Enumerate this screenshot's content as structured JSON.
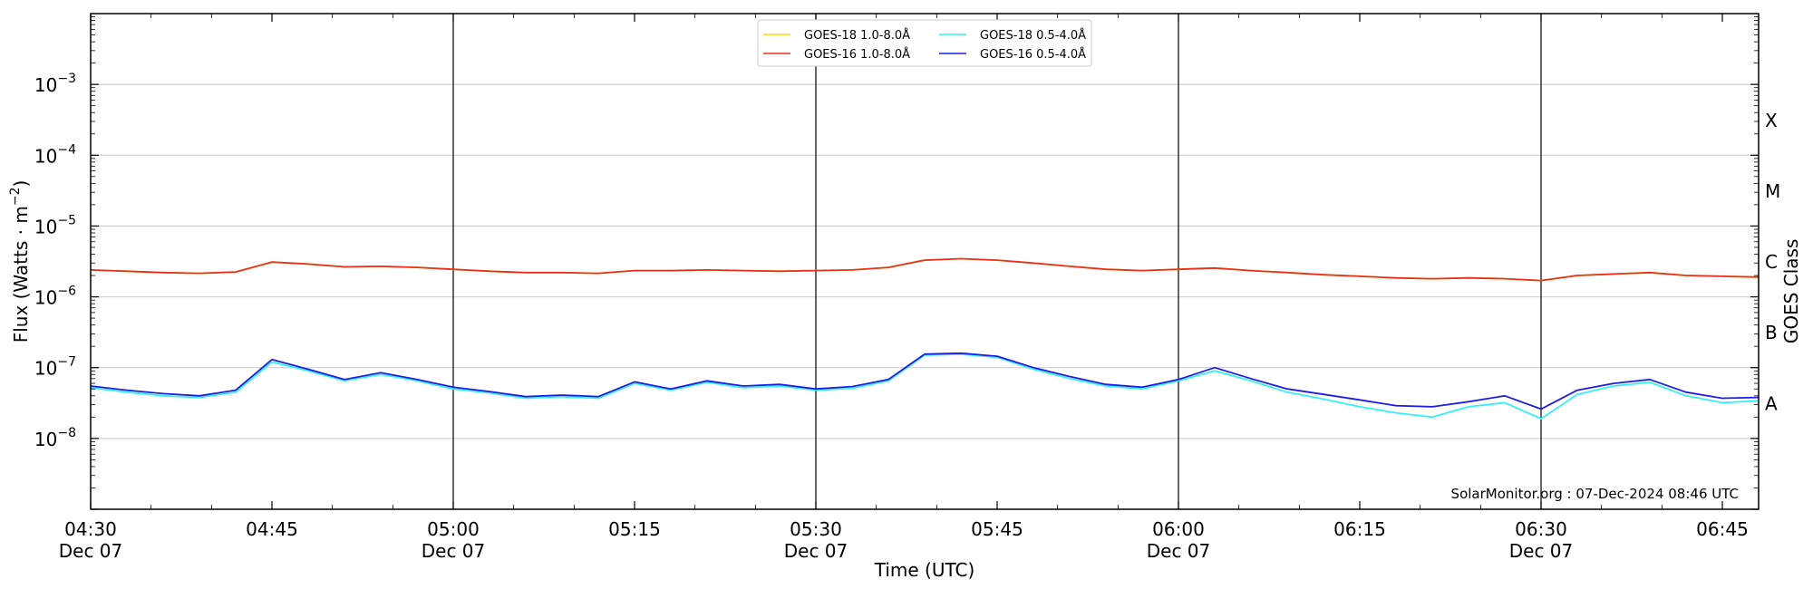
{
  "chart_data": {
    "type": "line",
    "xlabel": "Time (UTC)",
    "ylabel": "Flux (Watts · m",
    "ylabel_sup": "−2",
    "ylabel_close": ")",
    "right_axis_label": "GOES Class",
    "y_scale": "log",
    "ylim": [
      1e-09,
      0.01
    ],
    "xlim": [
      "2024-12-07 04:30",
      "2024-12-07 06:48"
    ],
    "grid": "horizontal",
    "legend_position": "top-center",
    "y_ticks": [
      {
        "value": 1e-08,
        "exp": "−8"
      },
      {
        "value": 1e-07,
        "exp": "−7"
      },
      {
        "value": 1e-06,
        "exp": "−6"
      },
      {
        "value": 1e-05,
        "exp": "−5"
      },
      {
        "value": 0.0001,
        "exp": "−4"
      },
      {
        "value": 0.001,
        "exp": "−3"
      }
    ],
    "y_tick_base": "10",
    "x_ticks": [
      {
        "minute": 0,
        "label": "04:30",
        "sub": "Dec 07"
      },
      {
        "minute": 15,
        "label": "04:45",
        "sub": ""
      },
      {
        "minute": 30,
        "label": "05:00",
        "sub": "Dec 07"
      },
      {
        "minute": 45,
        "label": "05:15",
        "sub": ""
      },
      {
        "minute": 60,
        "label": "05:30",
        "sub": "Dec 07"
      },
      {
        "minute": 75,
        "label": "05:45",
        "sub": ""
      },
      {
        "minute": 90,
        "label": "06:00",
        "sub": "Dec 07"
      },
      {
        "minute": 105,
        "label": "06:15",
        "sub": ""
      },
      {
        "minute": 120,
        "label": "06:30",
        "sub": "Dec 07"
      },
      {
        "minute": 135,
        "label": "06:45",
        "sub": ""
      }
    ],
    "vertical_lines_minutes": [
      30,
      60,
      90,
      120
    ],
    "goes_classes": [
      {
        "label": "A",
        "value": 3.2e-08
      },
      {
        "label": "B",
        "value": 3.2e-07
      },
      {
        "label": "C",
        "value": 3.2e-06
      },
      {
        "label": "M",
        "value": 3.2e-05
      },
      {
        "label": "X",
        "value": 0.00032
      }
    ],
    "credit": "SolarMonitor.org : 07-Dec-2024 08:46 UTC",
    "x_minutes": [
      0,
      3,
      6,
      9,
      12,
      15,
      18,
      21,
      24,
      27,
      30,
      33,
      36,
      39,
      42,
      45,
      48,
      51,
      54,
      57,
      60,
      63,
      66,
      69,
      72,
      75,
      78,
      81,
      84,
      87,
      90,
      93,
      96,
      99,
      102,
      105,
      108,
      111,
      114,
      117,
      120,
      123,
      126,
      129,
      132,
      135,
      138
    ],
    "series": [
      {
        "name": "GOES-18 1.0-8.0Å",
        "color": "#ffd700",
        "values": [
          2.4e-06,
          2.3e-06,
          2.2e-06,
          2.15e-06,
          2.25e-06,
          3.1e-06,
          2.9e-06,
          2.65e-06,
          2.7e-06,
          2.6e-06,
          2.45e-06,
          2.3e-06,
          2.2e-06,
          2.2e-06,
          2.15e-06,
          2.35e-06,
          2.35e-06,
          2.4e-06,
          2.35e-06,
          2.3e-06,
          2.35e-06,
          2.4e-06,
          2.6e-06,
          3.3e-06,
          3.45e-06,
          3.3e-06,
          3e-06,
          2.7e-06,
          2.45e-06,
          2.35e-06,
          2.45e-06,
          2.55e-06,
          2.35e-06,
          2.2e-06,
          2.05e-06,
          1.95e-06,
          1.85e-06,
          1.8e-06,
          1.85e-06,
          1.8e-06,
          1.7e-06,
          2e-06,
          2.1e-06,
          2.2e-06,
          2e-06,
          1.95e-06,
          1.9e-06
        ]
      },
      {
        "name": "GOES-16 1.0-8.0Å",
        "color": "#e8321e",
        "values": [
          2.4e-06,
          2.3e-06,
          2.2e-06,
          2.15e-06,
          2.25e-06,
          3.1e-06,
          2.9e-06,
          2.65e-06,
          2.7e-06,
          2.6e-06,
          2.45e-06,
          2.3e-06,
          2.2e-06,
          2.2e-06,
          2.15e-06,
          2.35e-06,
          2.35e-06,
          2.4e-06,
          2.35e-06,
          2.3e-06,
          2.35e-06,
          2.4e-06,
          2.6e-06,
          3.3e-06,
          3.45e-06,
          3.3e-06,
          3e-06,
          2.7e-06,
          2.45e-06,
          2.35e-06,
          2.45e-06,
          2.55e-06,
          2.35e-06,
          2.2e-06,
          2.05e-06,
          1.95e-06,
          1.85e-06,
          1.8e-06,
          1.85e-06,
          1.8e-06,
          1.7e-06,
          2e-06,
          2.1e-06,
          2.2e-06,
          2e-06,
          1.95e-06,
          1.9e-06
        ]
      },
      {
        "name": "GOES-18 0.5-4.0Å",
        "color": "#33f0ff",
        "values": [
          5.2e-08,
          4.5e-08,
          4e-08,
          3.8e-08,
          4.5e-08,
          1.2e-07,
          9e-08,
          6.5e-08,
          8e-08,
          6.5e-08,
          5e-08,
          4.4e-08,
          3.7e-08,
          3.9e-08,
          3.7e-08,
          6e-08,
          4.8e-08,
          6.2e-08,
          5.2e-08,
          5.5e-08,
          4.8e-08,
          5.1e-08,
          6.5e-08,
          1.5e-07,
          1.55e-07,
          1.4e-07,
          9.5e-08,
          7e-08,
          5.5e-08,
          5e-08,
          6.5e-08,
          9e-08,
          6.5e-08,
          4.5e-08,
          3.6e-08,
          2.8e-08,
          2.3e-08,
          2e-08,
          2.8e-08,
          3.2e-08,
          1.9e-08,
          4.2e-08,
          5.5e-08,
          6.2e-08,
          4e-08,
          3.2e-08,
          3.4e-08
        ]
      },
      {
        "name": "GOES-16 0.5-4.0Å",
        "color": "#1e1ee6",
        "values": [
          5.5e-08,
          4.8e-08,
          4.3e-08,
          4e-08,
          4.8e-08,
          1.3e-07,
          9.5e-08,
          6.8e-08,
          8.5e-08,
          6.8e-08,
          5.3e-08,
          4.6e-08,
          3.9e-08,
          4.1e-08,
          3.9e-08,
          6.3e-08,
          5e-08,
          6.5e-08,
          5.5e-08,
          5.8e-08,
          5e-08,
          5.4e-08,
          6.8e-08,
          1.55e-07,
          1.6e-07,
          1.45e-07,
          1e-07,
          7.5e-08,
          5.8e-08,
          5.3e-08,
          6.8e-08,
          1e-07,
          7e-08,
          5e-08,
          4.2e-08,
          3.5e-08,
          2.9e-08,
          2.8e-08,
          3.3e-08,
          4e-08,
          2.6e-08,
          4.8e-08,
          6e-08,
          6.8e-08,
          4.5e-08,
          3.7e-08,
          3.8e-08
        ]
      }
    ]
  }
}
